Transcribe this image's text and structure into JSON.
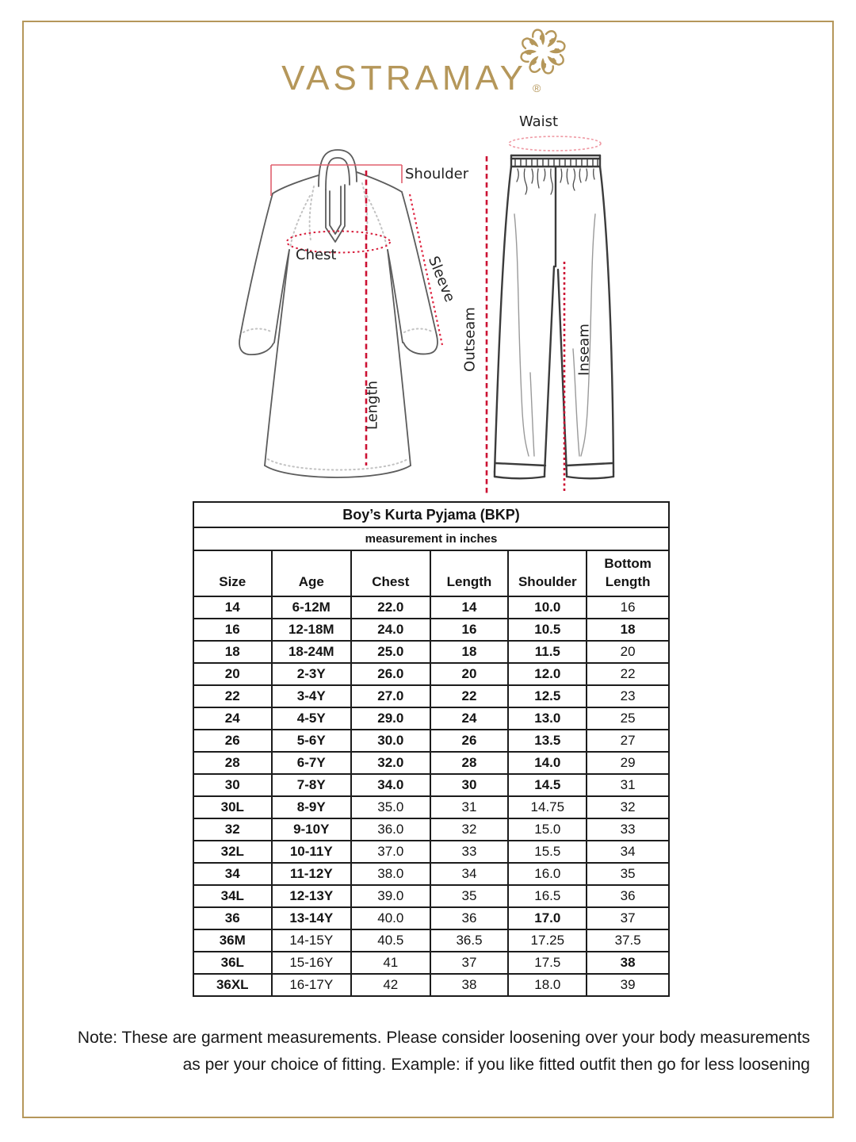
{
  "logo": {
    "text": "VASTRAMAY",
    "registered": "®",
    "mark_icon": "mandala-rosette",
    "gold_color": "#b5975a"
  },
  "colors": {
    "frame_gold": "#b5975a",
    "measure_red": "#d81f3d",
    "measure_pink": "#ef9aa4",
    "sketch_gray": "#5c5c5c"
  },
  "diagram": {
    "kurta": {
      "shoulder": "Shoulder",
      "chest": "Chest",
      "sleeve": "Sleeve",
      "length": "Length"
    },
    "pyjama": {
      "waist": "Waist",
      "outseam": "Outseam",
      "inseam": "Inseam"
    }
  },
  "table": {
    "title": "Boy’s Kurta Pyjama (BKP)",
    "subtitle": "measurement in inches",
    "columns": [
      "Size",
      "Age",
      "Chest",
      "Length",
      "Shoulder",
      "Bottom Length"
    ],
    "rows": [
      {
        "cells": [
          "14",
          "6-12M",
          "22.0",
          "14",
          "10.0",
          "16"
        ],
        "bold": [
          1,
          1,
          1,
          1,
          1,
          0
        ]
      },
      {
        "cells": [
          "16",
          "12-18M",
          "24.0",
          "16",
          "10.5",
          "18"
        ],
        "bold": [
          1,
          1,
          1,
          1,
          1,
          1
        ]
      },
      {
        "cells": [
          "18",
          "18-24M",
          "25.0",
          "18",
          "11.5",
          "20"
        ],
        "bold": [
          1,
          1,
          1,
          1,
          1,
          0
        ]
      },
      {
        "cells": [
          "20",
          "2-3Y",
          "26.0",
          "20",
          "12.0",
          "22"
        ],
        "bold": [
          1,
          1,
          1,
          1,
          1,
          0
        ]
      },
      {
        "cells": [
          "22",
          "3-4Y",
          "27.0",
          "22",
          "12.5",
          "23"
        ],
        "bold": [
          1,
          1,
          1,
          1,
          1,
          0
        ]
      },
      {
        "cells": [
          "24",
          "4-5Y",
          "29.0",
          "24",
          "13.0",
          "25"
        ],
        "bold": [
          1,
          1,
          1,
          1,
          1,
          0
        ]
      },
      {
        "cells": [
          "26",
          "5-6Y",
          "30.0",
          "26",
          "13.5",
          "27"
        ],
        "bold": [
          1,
          1,
          1,
          1,
          1,
          0
        ]
      },
      {
        "cells": [
          "28",
          "6-7Y",
          "32.0",
          "28",
          "14.0",
          "29"
        ],
        "bold": [
          1,
          1,
          1,
          1,
          1,
          0
        ]
      },
      {
        "cells": [
          "30",
          "7-8Y",
          "34.0",
          "30",
          "14.5",
          "31"
        ],
        "bold": [
          1,
          1,
          1,
          1,
          1,
          0
        ]
      },
      {
        "cells": [
          "30L",
          "8-9Y",
          "35.0",
          "31",
          "14.75",
          "32"
        ],
        "bold": [
          1,
          1,
          0,
          0,
          0,
          0
        ]
      },
      {
        "cells": [
          "32",
          "9-10Y",
          "36.0",
          "32",
          "15.0",
          "33"
        ],
        "bold": [
          1,
          1,
          0,
          0,
          0,
          0
        ]
      },
      {
        "cells": [
          "32L",
          "10-11Y",
          "37.0",
          "33",
          "15.5",
          "34"
        ],
        "bold": [
          1,
          1,
          0,
          0,
          0,
          0
        ]
      },
      {
        "cells": [
          "34",
          "11-12Y",
          "38.0",
          "34",
          "16.0",
          "35"
        ],
        "bold": [
          1,
          1,
          0,
          0,
          0,
          0
        ]
      },
      {
        "cells": [
          "34L",
          "12-13Y",
          "39.0",
          "35",
          "16.5",
          "36"
        ],
        "bold": [
          1,
          1,
          0,
          0,
          0,
          0
        ]
      },
      {
        "cells": [
          "36",
          "13-14Y",
          "40.0",
          "36",
          "17.0",
          "37"
        ],
        "bold": [
          1,
          1,
          0,
          0,
          1,
          0
        ]
      },
      {
        "cells": [
          "36M",
          "14-15Y",
          "40.5",
          "36.5",
          "17.25",
          "37.5"
        ],
        "bold": [
          1,
          0,
          0,
          0,
          0,
          0
        ]
      },
      {
        "cells": [
          "36L",
          "15-16Y",
          "41",
          "37",
          "17.5",
          "38"
        ],
        "bold": [
          1,
          0,
          0,
          0,
          0,
          1
        ]
      },
      {
        "cells": [
          "36XL",
          "16-17Y",
          "42",
          "38",
          "18.0",
          "39"
        ],
        "bold": [
          1,
          0,
          0,
          0,
          0,
          0
        ]
      }
    ]
  },
  "note": {
    "line1": "Note: These are garment measurements. Please consider loosening over your body measurements",
    "line2": "as per your choice of fitting. Example: if you like fitted outfit then go for less loosening"
  }
}
